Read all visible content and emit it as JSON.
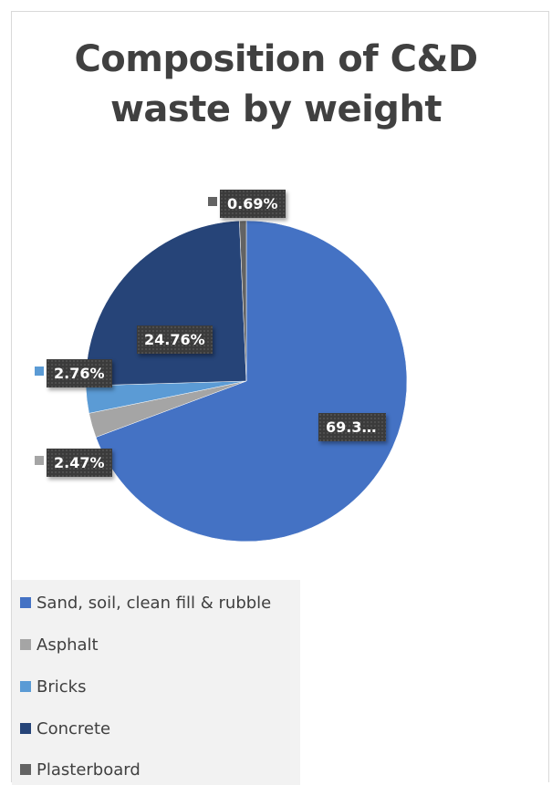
{
  "chart_data": {
    "type": "pie",
    "title": [
      "Composition of C&D",
      "waste by weight"
    ],
    "series": [
      {
        "name": "Sand, soil, clean fill & rubble",
        "value": 69.3,
        "label": "69.3…",
        "color": "#4472c4"
      },
      {
        "name": "Asphalt",
        "value": 2.47,
        "label": "2.47%",
        "color": "#a5a5a5"
      },
      {
        "name": "Bricks",
        "value": 2.76,
        "label": "2.76%",
        "color": "#5b9bd5"
      },
      {
        "name": "Concrete",
        "value": 24.76,
        "label": "24.76%",
        "color": "#264478"
      },
      {
        "name": "Plasterboard",
        "value": 0.69,
        "label": "0.69%",
        "color": "#636363"
      }
    ],
    "legend_position": "bottom",
    "start_angle": "12 o'clock",
    "direction": "clockwise"
  }
}
